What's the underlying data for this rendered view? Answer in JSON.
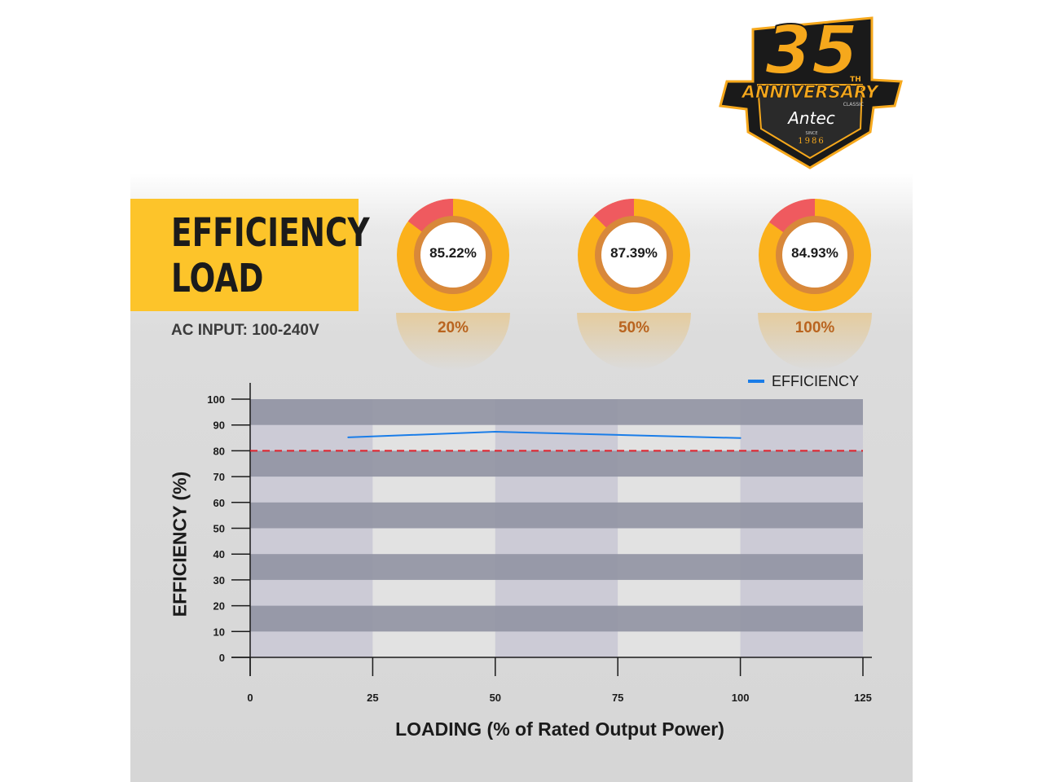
{
  "brand": {
    "badge_number": "35",
    "badge_superscript": "TH",
    "badge_word": "ANNIVERSARY",
    "badge_edition": "CLASSIC",
    "badge_name": "Antec",
    "badge_since": "SINCE",
    "badge_year": "1986"
  },
  "header": {
    "title_line_1": "EFFICIENCY",
    "title_line_2": "LOAD",
    "ac_input": "AC INPUT:  100-240V"
  },
  "donuts": [
    {
      "efficiency_label": "85.22%",
      "efficiency": 85.22,
      "load_label": "20%"
    },
    {
      "efficiency_label": "87.39%",
      "efficiency": 87.39,
      "load_label": "50%"
    },
    {
      "efficiency_label": "84.93%",
      "efficiency": 84.93,
      "load_label": "100%"
    }
  ],
  "colors": {
    "accent": "#fdc42a",
    "donut_orange": "#fbb11b",
    "donut_ring": "#d8883a",
    "donut_red": "#ef5a5f",
    "load_text": "#b9641f",
    "series": "#1a7de8",
    "threshold": "#e0202a",
    "band_dark": "#9395a4",
    "band_light": "#cccbd6"
  },
  "chart_data": {
    "type": "line",
    "xlabel": "LOADING (% of Rated Output Power)",
    "ylabel": "EFFICIENCY (%)",
    "xlim": [
      0,
      125
    ],
    "ylim": [
      0,
      100
    ],
    "xticks": [
      0,
      25,
      50,
      75,
      100,
      125
    ],
    "yticks": [
      0,
      10,
      20,
      30,
      40,
      50,
      60,
      70,
      80,
      90,
      100
    ],
    "legend": "top-right",
    "series": [
      {
        "name": "EFFICIENCY",
        "x": [
          20,
          50,
          100
        ],
        "y": [
          85.22,
          87.39,
          84.93
        ]
      }
    ],
    "threshold": {
      "y": 80,
      "style": "dashed"
    }
  }
}
